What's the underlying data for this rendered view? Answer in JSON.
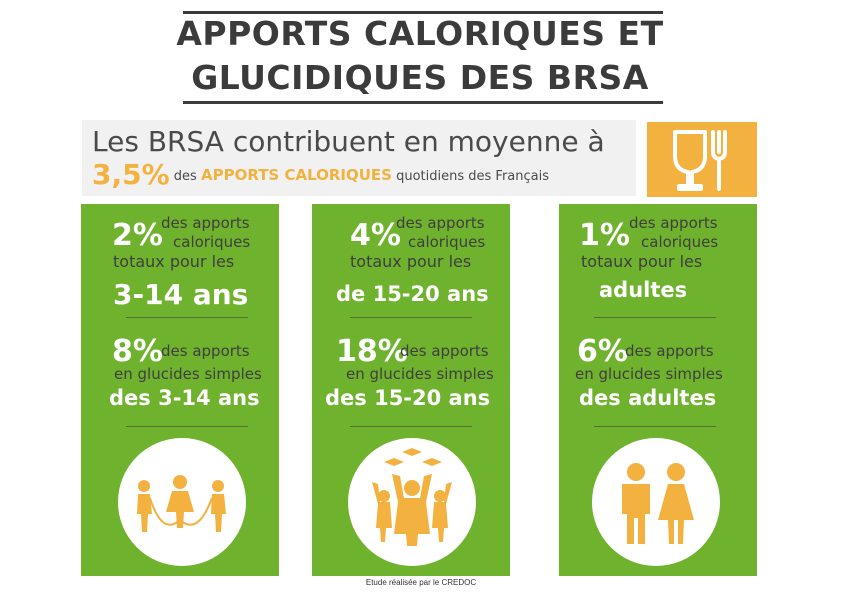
{
  "title": {
    "line1": "APPORTS CALORIQUES ET",
    "line2": "GLUCIDIQUES DES BRSA"
  },
  "intro": {
    "line1": "Les BRSA contribuent en moyenne à",
    "value": "3,5%",
    "pre_highlight": "des",
    "highlight": "APPORTS CALORIQUES",
    "post_highlight": "quotidiens des Français"
  },
  "icon": {
    "name": "glass-fork-icon"
  },
  "columns": [
    {
      "cal_pct": "2%",
      "cal_text_a": "des apports",
      "cal_text_b": "caloriques",
      "cal_text_c": "totaux pour les",
      "cal_group": "3-14 ans",
      "glu_pct": "8%",
      "glu_text_a": "des apports",
      "glu_text_b": "en glucides simples",
      "glu_group": "des 3-14 ans",
      "icon": "children-jump-rope-icon"
    },
    {
      "cal_pct": "4%",
      "cal_text_a": "des apports",
      "cal_text_b": "caloriques",
      "cal_text_c": "totaux pour les",
      "cal_group": "de 15-20 ans",
      "glu_pct": "18%",
      "glu_text_a": "des apports",
      "glu_text_b": "en glucides simples",
      "glu_group": "des 15-20 ans",
      "icon": "teenagers-graduation-icon"
    },
    {
      "cal_pct": "1%",
      "cal_text_a": "des apports",
      "cal_text_b": "caloriques",
      "cal_text_c": "totaux pour les",
      "cal_group": "adultes",
      "glu_pct": "6%",
      "glu_text_a": "des apports",
      "glu_text_b": "en glucides simples",
      "glu_group": "des adultes",
      "icon": "adults-man-woman-icon"
    }
  ],
  "footer": "Etude réalisée par le CREDOC",
  "colors": {
    "green": "#6fb22d",
    "orange": "#f3b13f",
    "dark": "#3b3b3b"
  }
}
